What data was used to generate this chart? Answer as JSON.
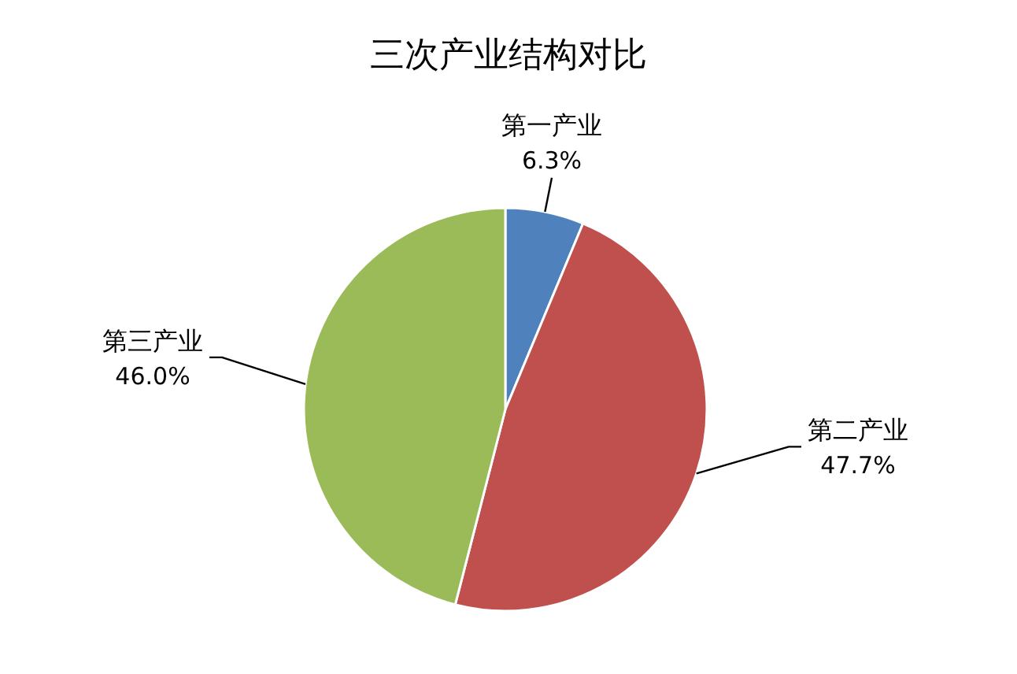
{
  "chart_data": {
    "type": "pie",
    "title": "三次产业结构对比",
    "categories": [
      "第一产业",
      "第二产业",
      "第三产业"
    ],
    "values": [
      6.3,
      47.7,
      46.0
    ],
    "value_labels": [
      "6.3%",
      "47.7%",
      "46.0%"
    ],
    "colors": [
      "#4f81bd",
      "#c0504d",
      "#9bbb59"
    ]
  }
}
